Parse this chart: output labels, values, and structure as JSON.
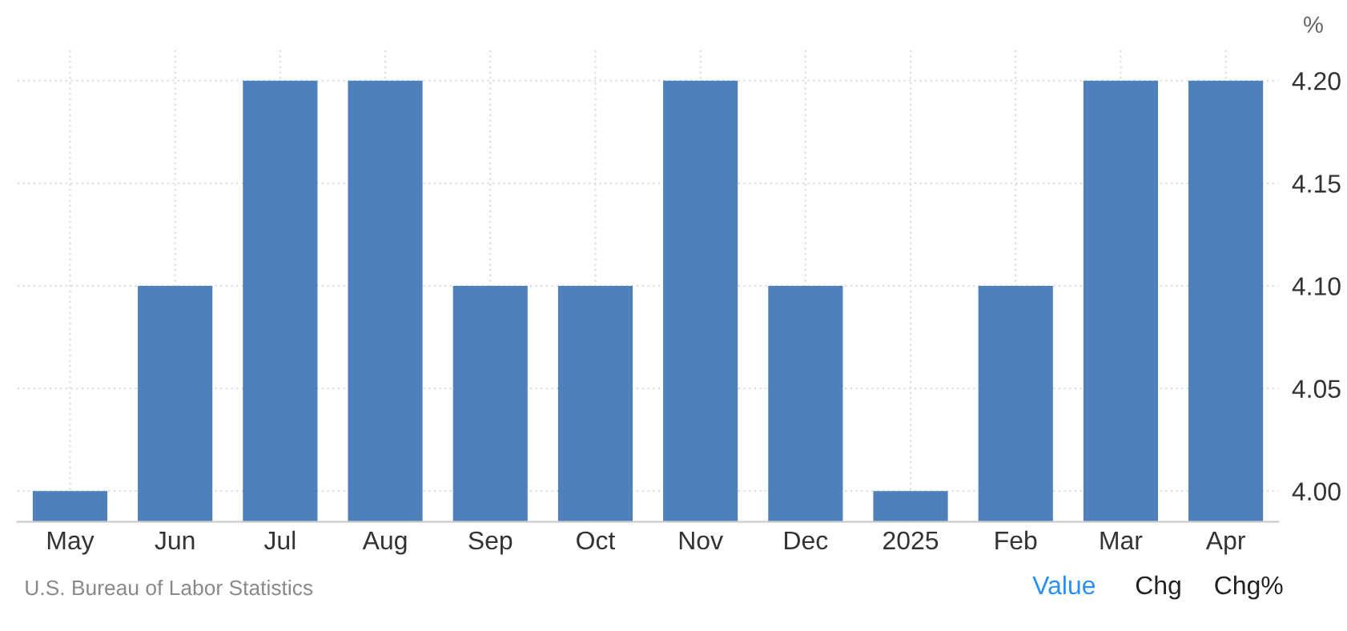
{
  "chart_data": {
    "type": "bar",
    "ylabel": "%",
    "categories": [
      "May",
      "Jun",
      "Jul",
      "Aug",
      "Sep",
      "Oct",
      "Nov",
      "Dec",
      "2025",
      "Feb",
      "Mar",
      "Apr"
    ],
    "values": [
      4.0,
      4.1,
      4.2,
      4.2,
      4.1,
      4.1,
      4.2,
      4.1,
      4.0,
      4.1,
      4.2,
      4.2
    ],
    "color": "#4e80bc",
    "ylim": [
      3.985,
      4.215
    ],
    "yticks": [
      {
        "value": 4.0,
        "label": "4.00"
      },
      {
        "value": 4.05,
        "label": "4.05"
      },
      {
        "value": 4.1,
        "label": "4.10"
      },
      {
        "value": 4.15,
        "label": "4.15"
      },
      {
        "value": 4.2,
        "label": "4.20"
      }
    ],
    "grid": true,
    "annotations": [
      "U.S. Bureau of Labor Statistics",
      "Value",
      "Chg",
      "Chg%"
    ]
  }
}
